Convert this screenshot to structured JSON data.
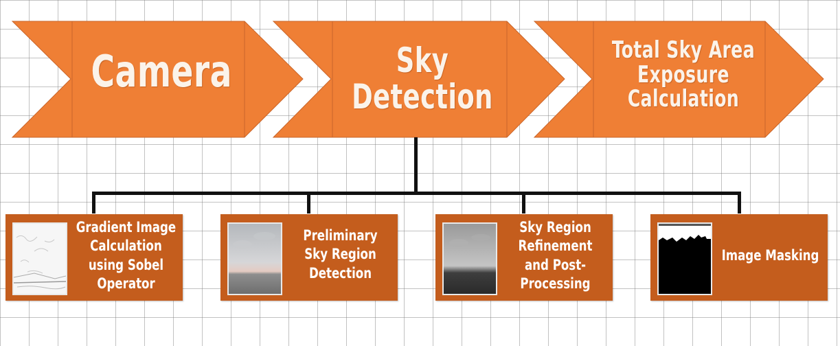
{
  "stages": [
    {
      "id": "camera",
      "label": "Camera"
    },
    {
      "id": "sky-detection",
      "label": "Sky\nDetection"
    },
    {
      "id": "total-sky-area",
      "label": "Total Sky Area\nExposure\nCalculation"
    }
  ],
  "sub_steps": [
    {
      "id": "gradient",
      "label": "Gradient Image\nCalculation\nusing Sobel\nOperator"
    },
    {
      "id": "preliminary",
      "label": "Preliminary\nSky Region\nDetection"
    },
    {
      "id": "refinement",
      "label": "Sky Region\nRefinement\nand Post-\nProcessing"
    },
    {
      "id": "masking",
      "label": "Image Masking"
    }
  ],
  "colors": {
    "chevron_fill": "#ef7f35",
    "chevron_stroke": "#c9652a",
    "sub_box_fill": "#c45d1d",
    "connector": "#111111",
    "text": "#ffffff"
  }
}
